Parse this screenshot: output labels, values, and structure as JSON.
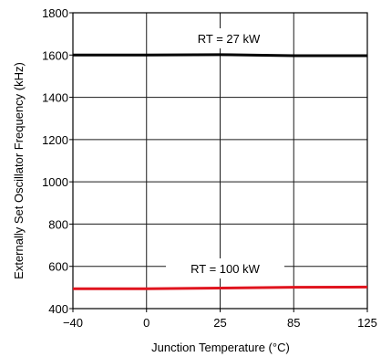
{
  "chart_data": {
    "type": "line",
    "title": "",
    "xlabel": "Junction Temperature (°C)",
    "ylabel": "Externally Set Oscillator Frequency (kHz)",
    "categories": [
      "−40",
      "0",
      "25",
      "85",
      "125"
    ],
    "y_ticks": [
      "400",
      "600",
      "800",
      "1000",
      "1200",
      "1400",
      "1600",
      "1800"
    ],
    "ylim": [
      400,
      1800
    ],
    "grid": true,
    "series": [
      {
        "name": "RT = 27 kW",
        "color": "#000000",
        "x": [
          "−40",
          "0",
          "25",
          "85",
          "125"
        ],
        "values": [
          1600,
          1600,
          1602,
          1597,
          1597
        ]
      },
      {
        "name": "RT = 100 kW",
        "color": "#e0141e",
        "x": [
          "−40",
          "0",
          "25",
          "85",
          "125"
        ],
        "values": [
          494,
          494,
          497,
          501,
          502
        ]
      }
    ],
    "annotations": [
      {
        "text": "RT = 27 kW",
        "series": 0
      },
      {
        "text": "RT = 100 kW",
        "series": 1
      }
    ]
  }
}
